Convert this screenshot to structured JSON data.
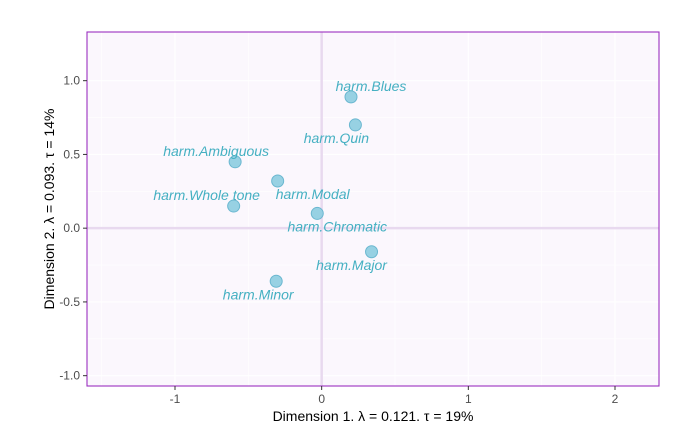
{
  "chart_data": {
    "type": "scatter",
    "title": "",
    "xlabel": "Dimension 1.   λ = 0.121.  τ = 19%",
    "ylabel": "Dimension 2.   λ = 0.093.  τ = 14%",
    "xlim": [
      -1.6,
      2.3
    ],
    "ylim": [
      -1.07,
      1.33
    ],
    "xticks": [
      -1,
      0,
      1,
      2
    ],
    "xtick_labels": [
      "-1",
      "0",
      "1",
      "2"
    ],
    "yticks": [
      -1.0,
      -0.5,
      0.0,
      0.5,
      1.0
    ],
    "ytick_labels": [
      "-1.0",
      "-0.5",
      "0.0",
      "0.5",
      "1.0"
    ],
    "grid": true,
    "colors": {
      "panel_background": "#fbf7fd",
      "panel_border": "#9b30c0",
      "grid_line": "#ffffff",
      "zero_line": "#e8d9ef",
      "point_fill": "#8ccce0",
      "point_stroke": "#6ab7d0",
      "label_color": "#45b0c2"
    },
    "points": [
      {
        "label": "harm.Blues",
        "x": 0.2,
        "y": 0.89
      },
      {
        "label": "harm.Quin",
        "x": 0.23,
        "y": 0.7
      },
      {
        "label": "harm.Ambiguous",
        "x": -0.59,
        "y": 0.45
      },
      {
        "label": "harm.Modal",
        "x": -0.3,
        "y": 0.32
      },
      {
        "label": "harm.Whole tone",
        "x": -0.6,
        "y": 0.15
      },
      {
        "label": "harm.Chromatic",
        "x": -0.03,
        "y": 0.1
      },
      {
        "label": "harm.Major",
        "x": 0.34,
        "y": -0.16
      },
      {
        "label": "harm.Minor",
        "x": -0.31,
        "y": -0.36
      }
    ]
  }
}
